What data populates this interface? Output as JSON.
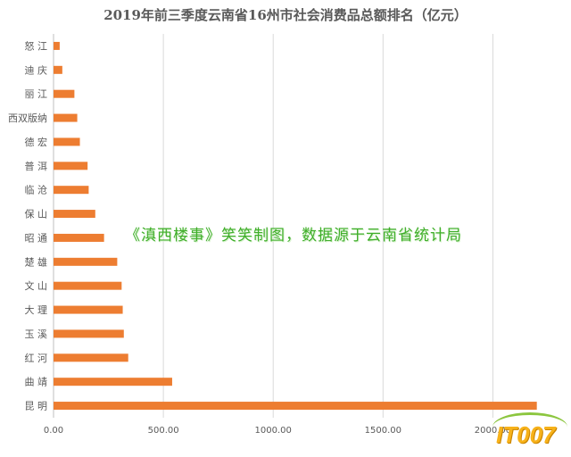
{
  "title": "2019年前三季度云南省16州市社会消费品总额排名（亿元）",
  "watermark": "《滇西楼事》笑笑制图，数据源于云南省统计局",
  "logo": {
    "text": "IT007"
  },
  "colors": {
    "bar": "#ed7d31",
    "grid": "#d9d9d9",
    "text": "#595959"
  },
  "chart_data": {
    "type": "bar",
    "orientation": "horizontal",
    "title": "2019年前三季度云南省16州市社会消费品总额排名（亿元）",
    "categories": [
      "怒 江",
      "迪 庆",
      "丽 江",
      "西双版纳",
      "德 宏",
      "普 洱",
      "临 沧",
      "保 山",
      "昭 通",
      "楚 雄",
      "文 山",
      "大 理",
      "玉 溪",
      "红 河",
      "曲 靖",
      "昆 明"
    ],
    "values": [
      28,
      40,
      95,
      108,
      120,
      155,
      160,
      190,
      230,
      290,
      310,
      315,
      320,
      340,
      540,
      2200
    ],
    "xlim": [
      0,
      2250
    ],
    "xticks": [
      "0.00",
      "500.00",
      "1000.00",
      "1500.00",
      "2000.00"
    ],
    "xtick_values": [
      0,
      500,
      1000,
      1500,
      2000
    ],
    "grid": true,
    "legend": "none"
  }
}
